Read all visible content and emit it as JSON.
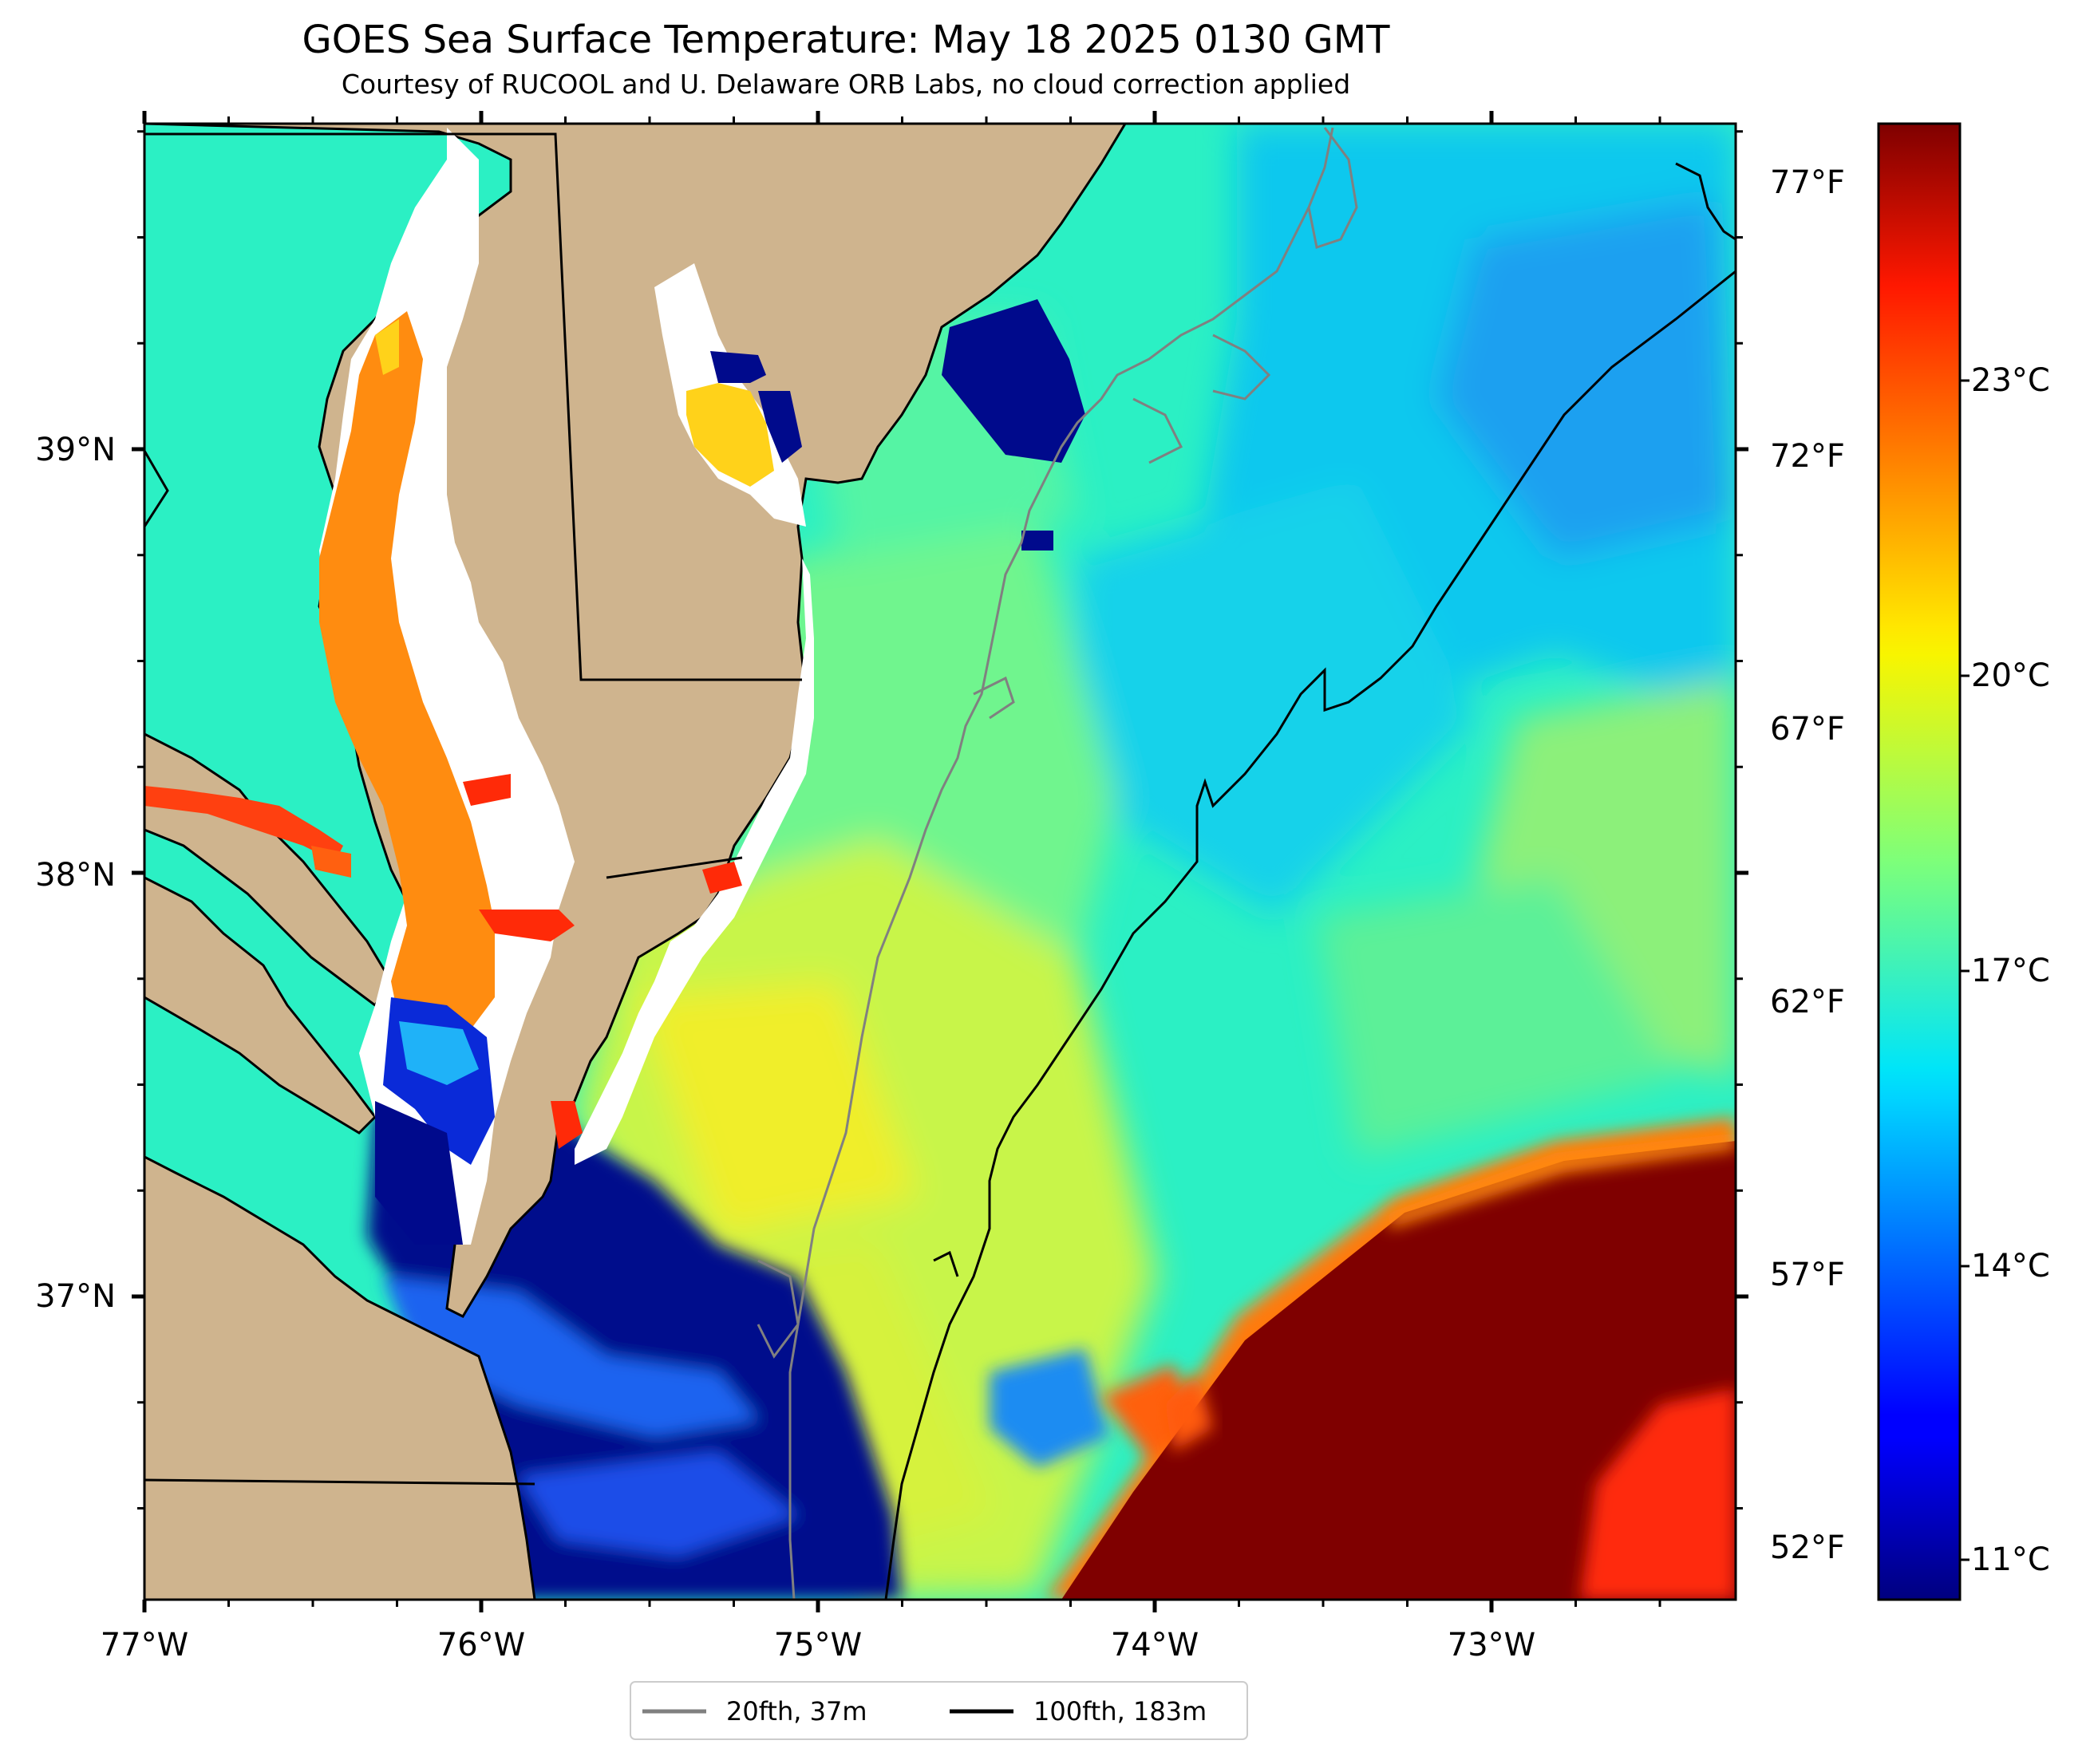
{
  "title": "GOES Sea Surface Temperature: May 18 2025 0130 GMT",
  "subtitle": "Courtesy of RUCOOL and U. Delaware ORB Labs, no cloud correction applied",
  "map": {
    "lon_range": [
      -77.0,
      -72.28
    ],
    "lat_range": [
      36.29,
      39.77
    ],
    "lon_ticks": [
      "77°W",
      "76°W",
      "75°W",
      "74°W",
      "73°W"
    ],
    "lat_ticks": [
      "39°N",
      "38°N",
      "37°N"
    ],
    "land_color": "#cfb48e",
    "missing_data_color": "#ffffff"
  },
  "colorbar": {
    "colormap": "jet",
    "celsius_ticks": [
      "23°C",
      "20°C",
      "17°C",
      "14°C",
      "11°C"
    ],
    "fahrenheit_ticks": [
      "77°F",
      "72°F",
      "67°F",
      "62°F",
      "57°F",
      "52°F"
    ]
  },
  "legend": {
    "items": [
      {
        "label": "20fth, 37m",
        "color": "#808080"
      },
      {
        "label": "100fth, 183m",
        "color": "#000000"
      }
    ]
  }
}
